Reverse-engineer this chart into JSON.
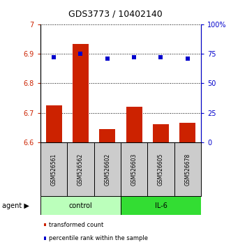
{
  "title": "GDS3773 / 10402140",
  "samples": [
    "GSM526561",
    "GSM526562",
    "GSM526602",
    "GSM526603",
    "GSM526605",
    "GSM526678"
  ],
  "bar_values": [
    6.725,
    6.935,
    6.645,
    6.72,
    6.66,
    6.665
  ],
  "percentile_values": [
    72,
    75,
    71,
    72,
    72,
    71
  ],
  "bar_color": "#cc2200",
  "dot_color": "#0000cc",
  "ylim_left": [
    6.6,
    7.0
  ],
  "ylim_right": [
    0,
    100
  ],
  "yticks_left": [
    6.6,
    6.7,
    6.8,
    6.9,
    7.0
  ],
  "yticks_left_labels": [
    "6.6",
    "6.7",
    "6.8",
    "6.9",
    "7"
  ],
  "yticks_right": [
    0,
    25,
    50,
    75,
    100
  ],
  "yticklabels_right": [
    "0",
    "25",
    "50",
    "75",
    "100%"
  ],
  "groups": [
    {
      "label": "control",
      "indices": [
        0,
        1,
        2
      ],
      "color": "#bbffbb"
    },
    {
      "label": "IL-6",
      "indices": [
        3,
        4,
        5
      ],
      "color": "#33dd33"
    }
  ],
  "agent_label": "agent",
  "legend_items": [
    {
      "label": "transformed count",
      "color": "#cc2200"
    },
    {
      "label": "percentile rank within the sample",
      "color": "#0000cc"
    }
  ],
  "bar_width": 0.6,
  "background_color": "#ffffff"
}
